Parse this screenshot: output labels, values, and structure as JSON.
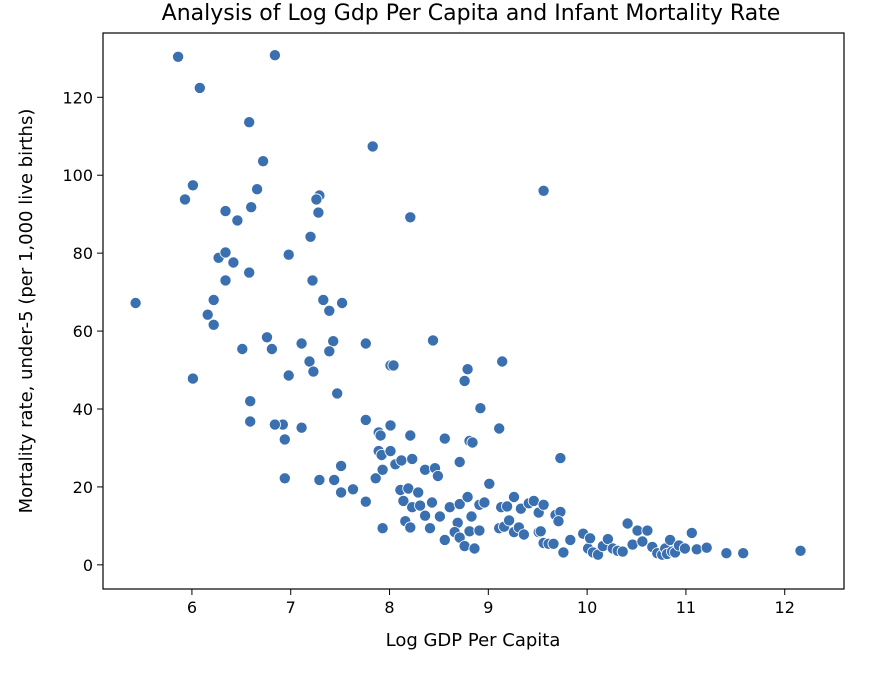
{
  "chart_data": {
    "type": "scatter",
    "title": "Analysis of Log Gdp Per Capita and Infant Mortality Rate",
    "xlabel": "Log GDP Per Capita",
    "ylabel": "Mortality rate, under-5 (per 1,000 live births)",
    "xlim": [
      5.1,
      12.6
    ],
    "ylim": [
      -6.2,
      136.5
    ],
    "xticks": [
      6,
      7,
      8,
      9,
      10,
      11,
      12
    ],
    "yticks": [
      0,
      20,
      40,
      60,
      80,
      100,
      120
    ],
    "grid": false,
    "color": "#3a6fb0",
    "points": [
      [
        5.43,
        67.2
      ],
      [
        5.86,
        130.4
      ],
      [
        6.84,
        130.8
      ],
      [
        6.08,
        122.4
      ],
      [
        6.58,
        113.6
      ],
      [
        7.83,
        107.4
      ],
      [
        6.72,
        103.6
      ],
      [
        5.93,
        93.8
      ],
      [
        6.01,
        97.4
      ],
      [
        6.66,
        96.4
      ],
      [
        7.29,
        94.8
      ],
      [
        7.26,
        93.8
      ],
      [
        7.28,
        90.4
      ],
      [
        6.34,
        90.8
      ],
      [
        6.46,
        88.4
      ],
      [
        8.21,
        89.2
      ],
      [
        6.6,
        91.8
      ],
      [
        7.2,
        84.2
      ],
      [
        6.27,
        78.8
      ],
      [
        6.34,
        80.2
      ],
      [
        6.42,
        77.6
      ],
      [
        6.98,
        79.6
      ],
      [
        6.58,
        75.0
      ],
      [
        6.34,
        73.0
      ],
      [
        7.22,
        73.0
      ],
      [
        6.22,
        68.0
      ],
      [
        7.33,
        68.0
      ],
      [
        7.39,
        65.2
      ],
      [
        7.52,
        67.2
      ],
      [
        6.16,
        64.2
      ],
      [
        6.22,
        61.6
      ],
      [
        6.76,
        58.4
      ],
      [
        7.43,
        57.4
      ],
      [
        7.11,
        56.8
      ],
      [
        6.51,
        55.4
      ],
      [
        6.81,
        55.4
      ],
      [
        7.76,
        56.8
      ],
      [
        8.44,
        57.6
      ],
      [
        7.39,
        54.8
      ],
      [
        7.19,
        52.2
      ],
      [
        7.23,
        49.6
      ],
      [
        6.98,
        48.6
      ],
      [
        6.01,
        47.8
      ],
      [
        8.01,
        51.2
      ],
      [
        8.04,
        51.2
      ],
      [
        8.79,
        50.2
      ],
      [
        9.14,
        52.2
      ],
      [
        8.76,
        47.2
      ],
      [
        7.47,
        44.0
      ],
      [
        6.59,
        42.0
      ],
      [
        8.92,
        40.2
      ],
      [
        6.59,
        36.8
      ],
      [
        6.84,
        36.0
      ],
      [
        6.92,
        36.0
      ],
      [
        7.11,
        35.2
      ],
      [
        6.94,
        32.2
      ],
      [
        7.76,
        37.2
      ],
      [
        7.89,
        34.0
      ],
      [
        7.91,
        33.2
      ],
      [
        8.01,
        35.8
      ],
      [
        8.21,
        33.2
      ],
      [
        8.56,
        32.4
      ],
      [
        8.81,
        31.8
      ],
      [
        8.84,
        31.4
      ],
      [
        9.11,
        35.0
      ],
      [
        7.89,
        29.2
      ],
      [
        7.92,
        28.2
      ],
      [
        8.01,
        29.2
      ],
      [
        8.06,
        25.8
      ],
      [
        8.12,
        26.8
      ],
      [
        8.23,
        27.2
      ],
      [
        8.36,
        24.4
      ],
      [
        8.46,
        24.8
      ],
      [
        8.49,
        22.8
      ],
      [
        8.71,
        26.4
      ],
      [
        9.73,
        27.4
      ],
      [
        6.94,
        22.2
      ],
      [
        7.29,
        21.8
      ],
      [
        7.44,
        21.8
      ],
      [
        7.51,
        25.4
      ],
      [
        7.51,
        18.6
      ],
      [
        7.63,
        19.4
      ],
      [
        7.76,
        16.2
      ],
      [
        7.86,
        22.2
      ],
      [
        7.93,
        24.4
      ],
      [
        8.11,
        19.2
      ],
      [
        8.14,
        16.4
      ],
      [
        8.19,
        19.6
      ],
      [
        8.29,
        18.6
      ],
      [
        8.23,
        14.8
      ],
      [
        8.31,
        15.2
      ],
      [
        8.36,
        12.6
      ],
      [
        8.43,
        16.0
      ],
      [
        8.51,
        12.4
      ],
      [
        8.61,
        14.8
      ],
      [
        8.69,
        10.8
      ],
      [
        8.71,
        15.6
      ],
      [
        8.79,
        17.4
      ],
      [
        8.83,
        12.4
      ],
      [
        8.91,
        15.4
      ],
      [
        8.96,
        16.0
      ],
      [
        9.01,
        20.8
      ],
      [
        9.13,
        14.8
      ],
      [
        9.19,
        15.0
      ],
      [
        9.26,
        17.4
      ],
      [
        9.33,
        14.4
      ],
      [
        9.41,
        15.8
      ],
      [
        9.46,
        16.4
      ],
      [
        9.51,
        13.4
      ],
      [
        9.56,
        15.4
      ],
      [
        9.68,
        12.8
      ],
      [
        9.73,
        13.6
      ],
      [
        7.93,
        9.4
      ],
      [
        8.16,
        11.2
      ],
      [
        8.21,
        9.6
      ],
      [
        8.41,
        9.4
      ],
      [
        8.56,
        6.4
      ],
      [
        8.66,
        8.4
      ],
      [
        8.71,
        7.0
      ],
      [
        8.76,
        4.8
      ],
      [
        8.81,
        8.6
      ],
      [
        8.86,
        4.2
      ],
      [
        8.91,
        8.8
      ],
      [
        9.11,
        9.4
      ],
      [
        9.16,
        9.8
      ],
      [
        9.21,
        11.4
      ],
      [
        9.26,
        8.4
      ],
      [
        9.31,
        9.6
      ],
      [
        9.36,
        7.8
      ],
      [
        9.51,
        8.4
      ],
      [
        9.53,
        8.6
      ],
      [
        9.56,
        5.6
      ],
      [
        9.61,
        5.4
      ],
      [
        9.66,
        5.4
      ],
      [
        9.71,
        11.2
      ],
      [
        9.76,
        3.2
      ],
      [
        9.83,
        6.4
      ],
      [
        9.96,
        8.0
      ],
      [
        10.01,
        4.2
      ],
      [
        10.03,
        6.8
      ],
      [
        10.06,
        3.2
      ],
      [
        10.11,
        2.6
      ],
      [
        10.16,
        4.8
      ],
      [
        10.21,
        6.6
      ],
      [
        10.26,
        4.2
      ],
      [
        10.31,
        3.6
      ],
      [
        10.36,
        3.4
      ],
      [
        10.41,
        10.6
      ],
      [
        10.46,
        5.2
      ],
      [
        10.51,
        8.8
      ],
      [
        10.56,
        6.0
      ],
      [
        10.61,
        8.8
      ],
      [
        10.66,
        4.6
      ],
      [
        10.71,
        3.0
      ],
      [
        10.76,
        2.6
      ],
      [
        10.79,
        4.2
      ],
      [
        10.81,
        2.8
      ],
      [
        10.84,
        6.4
      ],
      [
        10.86,
        3.4
      ],
      [
        10.89,
        3.2
      ],
      [
        10.93,
        5.0
      ],
      [
        10.99,
        4.2
      ],
      [
        11.06,
        8.2
      ],
      [
        11.11,
        4.0
      ],
      [
        11.21,
        4.4
      ],
      [
        11.41,
        3.0
      ],
      [
        11.58,
        3.0
      ],
      [
        12.16,
        3.6
      ],
      [
        9.56,
        96.0
      ],
      [
        6.84,
        36.0
      ]
    ]
  }
}
